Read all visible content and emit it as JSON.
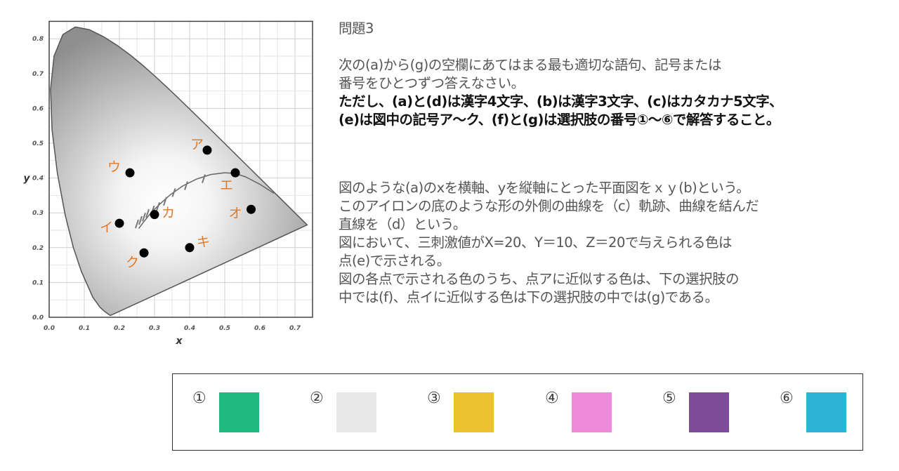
{
  "title": "問題3",
  "instructions": [
    "次の(a)から(g)の空欄にあてはまる最も適切な語句、記号または",
    "番号をひとつずつ答えなさい。"
  ],
  "conditions": [
    "ただし、(a)と(d)は漢字4文字、(b)は漢字3文字、(c)はカタカナ5文字、",
    "(e)は図中の記号ア～ク、(f)と(g)は選択肢の番号①～⑥で解答すること。"
  ],
  "body": [
    "図のような(a)のxを横軸、yを縦軸にとった平面図をｘｙ(b)という。",
    "このアイロンの底のような形の外側の曲線を（c）軌跡、曲線を結んだ",
    "直線を（d）という。",
    "図において、三刺激値がX=20、Y＝10、Z＝20で与えられる色は",
    "点(e)で示される。",
    "図の各点で示される色のうち、点アに近似する色は、下の選択肢の",
    "中では(f)、点イに近似する色は下の選択肢の中では(g)である。"
  ],
  "choices": [
    {
      "label": "①",
      "color": "#22b97f"
    },
    {
      "label": "②",
      "color": "#e8e8e8"
    },
    {
      "label": "③",
      "color": "#ecc22f"
    },
    {
      "label": "④",
      "color": "#ee88d8"
    },
    {
      "label": "⑤",
      "color": "#7d4b98"
    },
    {
      "label": "⑥",
      "color": "#2db3d6"
    }
  ],
  "chart_data": {
    "type": "scatter",
    "xlabel": "x",
    "ylabel": "y",
    "xlim": [
      0,
      0.75
    ],
    "ylim": [
      0,
      0.85
    ],
    "xticks": [
      "0.0",
      "0.1",
      "0.2",
      "0.3",
      "0.4",
      "0.5",
      "0.6",
      "0.7"
    ],
    "yticks": [
      "0.0",
      "0.1",
      "0.2",
      "0.3",
      "0.4",
      "0.5",
      "0.6",
      "0.7",
      "0.8"
    ],
    "grid": true,
    "label_color": "#e07a2a",
    "points": [
      {
        "label": "ア",
        "x": 0.45,
        "y": 0.48
      },
      {
        "label": "イ",
        "x": 0.2,
        "y": 0.27
      },
      {
        "label": "ウ",
        "x": 0.23,
        "y": 0.415
      },
      {
        "label": "エ",
        "x": 0.53,
        "y": 0.415
      },
      {
        "label": "オ",
        "x": 0.575,
        "y": 0.31
      },
      {
        "label": "カ",
        "x": 0.3,
        "y": 0.295
      },
      {
        "label": "キ",
        "x": 0.4,
        "y": 0.2
      },
      {
        "label": "ク",
        "x": 0.27,
        "y": 0.185
      }
    ]
  }
}
